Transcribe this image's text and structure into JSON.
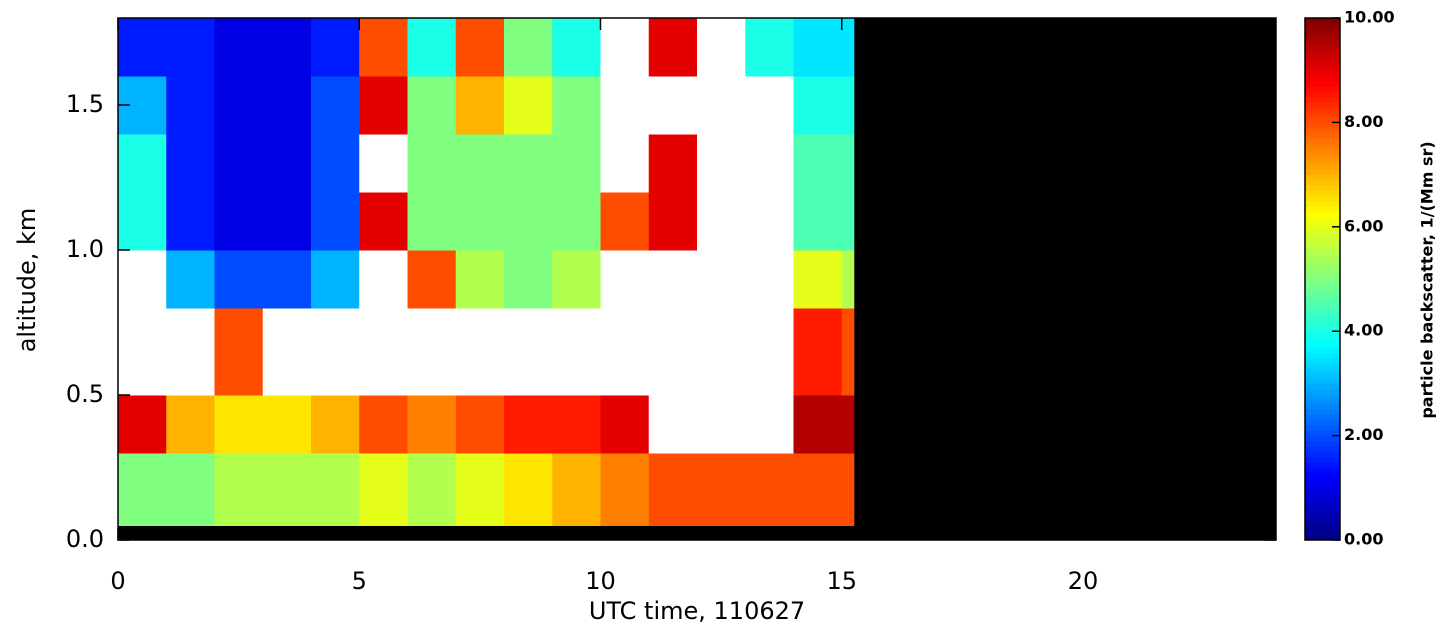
{
  "chart_data": {
    "type": "heatmap",
    "xlabel": "UTC time, 110627",
    "ylabel": "altitude, km",
    "xlim": [
      0,
      24
    ],
    "xticks": [
      0,
      5,
      10,
      15,
      20
    ],
    "ylim": [
      0,
      1.8
    ],
    "yticks": [
      {
        "value": 0,
        "label": "0.0"
      },
      0.5,
      {
        "value": 1,
        "label": "1.0"
      },
      1.5
    ],
    "xbins": [
      0,
      1,
      2,
      3,
      4,
      5,
      6,
      7,
      8,
      9,
      10,
      11,
      12,
      13,
      14,
      15,
      15.25
    ],
    "ybins": [
      0,
      0.05,
      0.3,
      0.5,
      0.8,
      1.0,
      1.2,
      1.4,
      1.6,
      1.8
    ],
    "values": [
      [
        null,
        null,
        null,
        null,
        null,
        null,
        null,
        null,
        null,
        null,
        null,
        null,
        null,
        null,
        null,
        null
      ],
      [
        5,
        5,
        5.5,
        5.5,
        5.5,
        6,
        5.5,
        6,
        6.5,
        7,
        7.5,
        8,
        8,
        8,
        8,
        8
      ],
      [
        9,
        7,
        6.5,
        6.5,
        7,
        8,
        7.5,
        8,
        8.5,
        8.5,
        9,
        12,
        12,
        12,
        9.5,
        9.5
      ],
      [
        12,
        12,
        8,
        12,
        12,
        12,
        12,
        12,
        12,
        12,
        12,
        12,
        12,
        12,
        8.5,
        8
      ],
      [
        12,
        3,
        2,
        2,
        3,
        12,
        8,
        5.5,
        5,
        5.5,
        12,
        12,
        12,
        12,
        6,
        5.5
      ],
      [
        4,
        1.5,
        1,
        1,
        2,
        9,
        5,
        5,
        5,
        5,
        8,
        9,
        12,
        12,
        4.5,
        4.5
      ],
      [
        4,
        1.5,
        1,
        1,
        2,
        12,
        5,
        5,
        5,
        5,
        12,
        9,
        12,
        12,
        4.5,
        4.5
      ],
      [
        3,
        1.5,
        1,
        1,
        2,
        9,
        5,
        7,
        6,
        5,
        12,
        12,
        12,
        12,
        4,
        4
      ],
      [
        1.5,
        1.5,
        1,
        1,
        1.5,
        8,
        4,
        8,
        5,
        4,
        12,
        9,
        12,
        4,
        3.5,
        3.5
      ]
    ],
    "missing_color": "#000000",
    "colormap": [
      "#00007f",
      "#0000ff",
      "#0080ff",
      "#00ffff",
      "#80ff80",
      "#ffff00",
      "#ff8000",
      "#ff0000",
      "#7f0000"
    ],
    "colorbar": {
      "label": "particle backscatter, 1/(Mm sr)",
      "lim": [
        0,
        10
      ],
      "ticks": [
        {
          "value": 0,
          "label": "0.00"
        },
        {
          "value": 2,
          "label": "2.00"
        },
        {
          "value": 4,
          "label": "4.00"
        },
        {
          "value": 6,
          "label": "6.00"
        },
        {
          "value": 8,
          "label": "8.00"
        },
        {
          "value": 10,
          "label": "10.00"
        }
      ],
      "over_color": "#ffffff"
    }
  }
}
